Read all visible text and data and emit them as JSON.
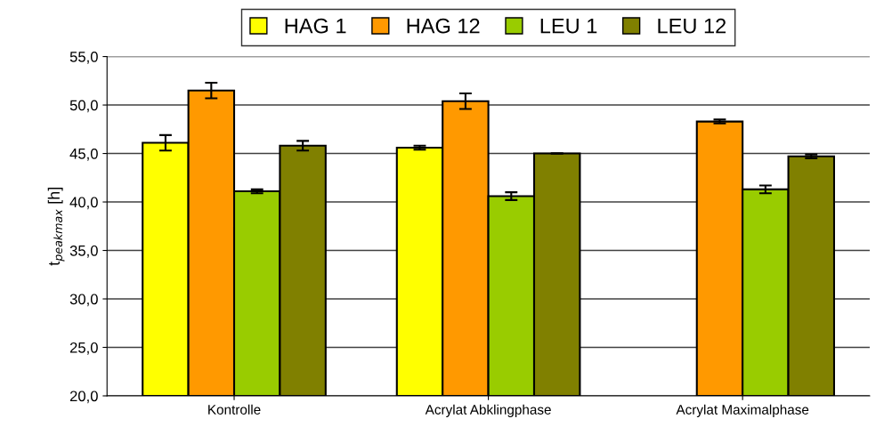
{
  "chart_data": {
    "type": "bar",
    "categories": [
      "Kontrolle",
      "Acrylat Abklingphase",
      "Acrylat Maximalphase"
    ],
    "series": [
      {
        "name": "HAG 1",
        "color": "#ffff00",
        "values": [
          46.1,
          45.6,
          null
        ],
        "errors": [
          0.8,
          0.2,
          null
        ]
      },
      {
        "name": "HAG 12",
        "color": "#ff9900",
        "values": [
          51.5,
          50.4,
          48.3
        ],
        "errors": [
          0.8,
          0.8,
          0.2
        ]
      },
      {
        "name": "LEU 1",
        "color": "#99cc00",
        "values": [
          41.1,
          40.6,
          41.3
        ],
        "errors": [
          0.2,
          0.4,
          0.4
        ]
      },
      {
        "name": "LEU 12",
        "color": "#808000",
        "values": [
          45.8,
          45.0,
          44.7
        ],
        "errors": [
          0.5,
          0,
          0.2
        ]
      }
    ],
    "ylabel": "t$_{peakmax}$ [h]",
    "ylim": [
      20,
      55
    ],
    "yticks": [
      {
        "value": 20,
        "label": "20,0"
      },
      {
        "value": 25,
        "label": "25,0"
      },
      {
        "value": 30,
        "label": "30,0"
      },
      {
        "value": 35,
        "label": "35,0"
      },
      {
        "value": 40,
        "label": "40,0"
      },
      {
        "value": 45,
        "label": "45,0"
      },
      {
        "value": 50,
        "label": "50,0"
      },
      {
        "value": 55,
        "label": "55,0"
      }
    ],
    "grid": "y",
    "legend": "top"
  }
}
